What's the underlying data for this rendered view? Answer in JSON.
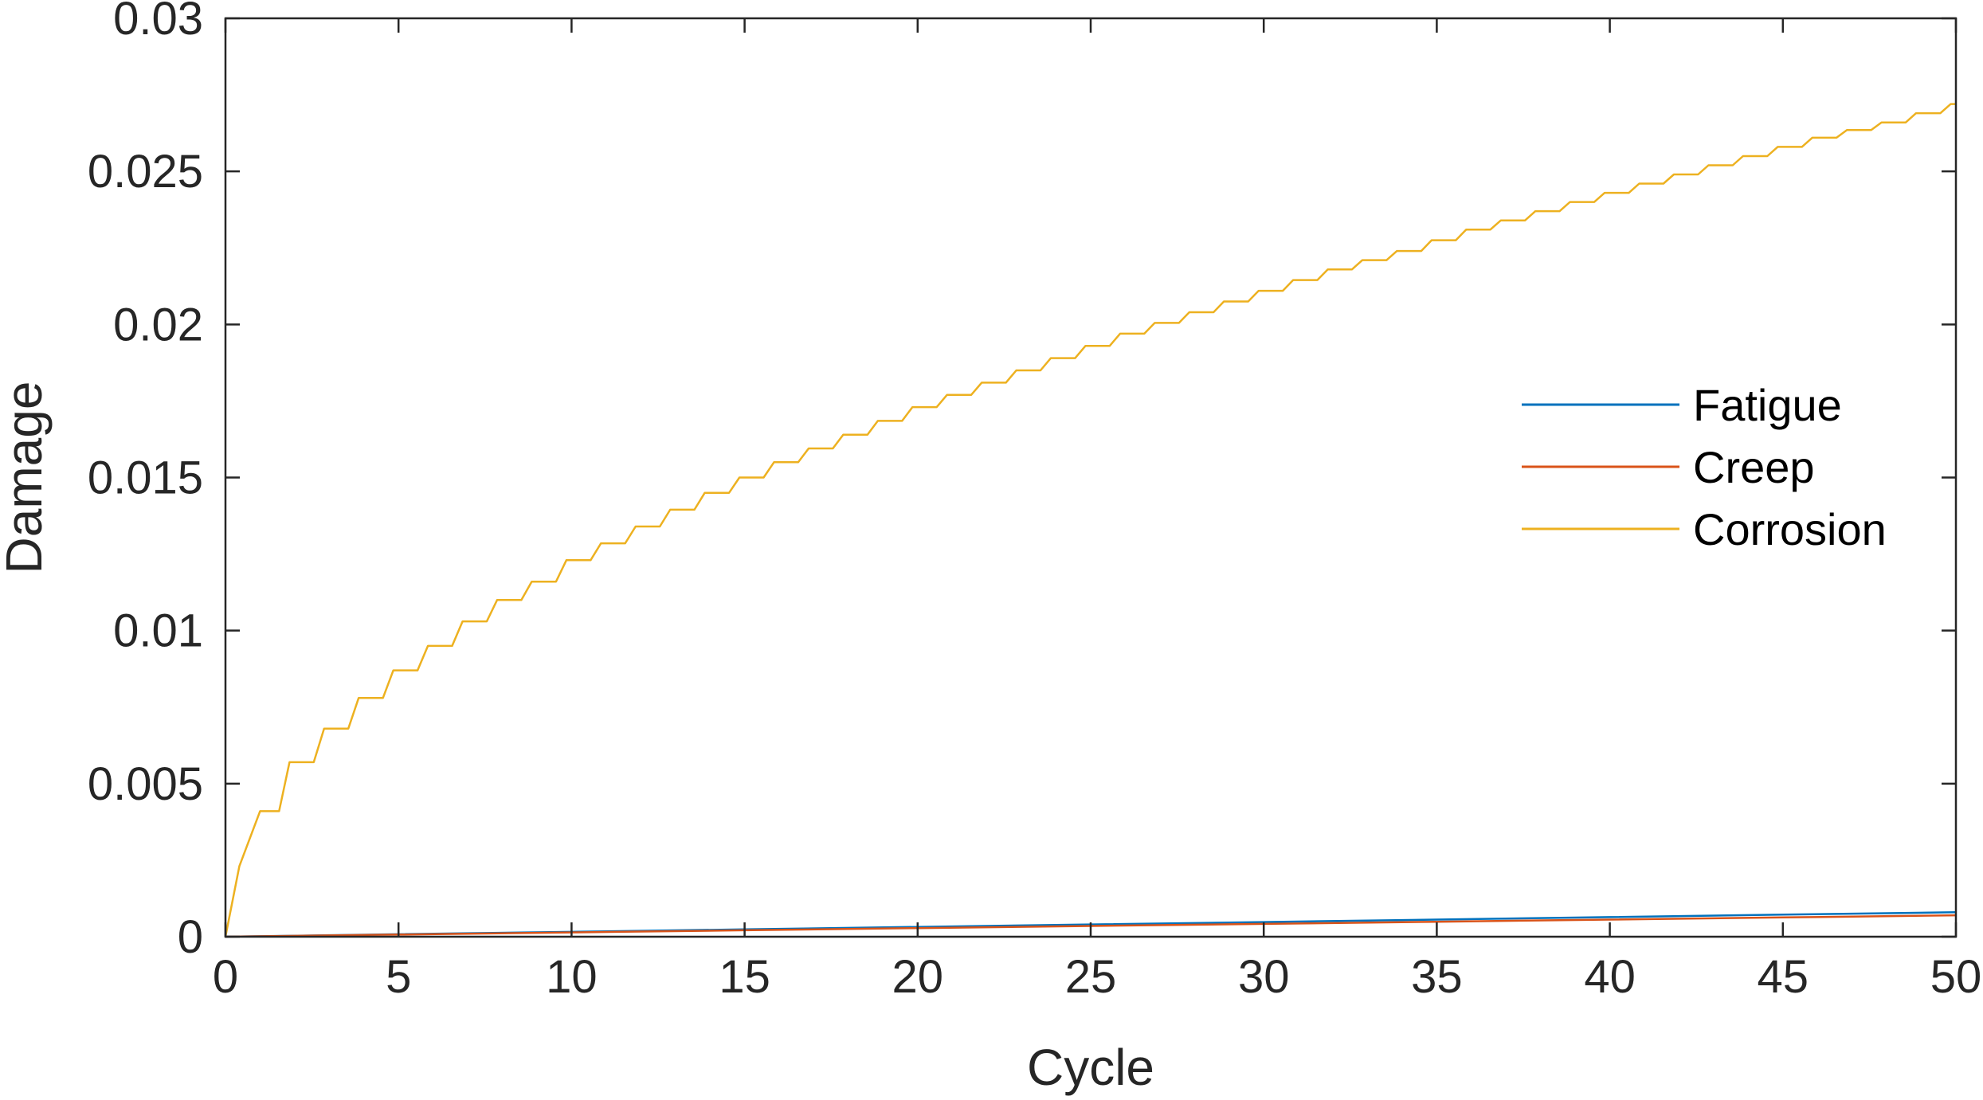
{
  "chart_data": {
    "type": "line",
    "title": "",
    "xlabel": "Cycle",
    "ylabel": "Damage",
    "xlim": [
      0,
      50
    ],
    "ylim": [
      0,
      0.03
    ],
    "grid": false,
    "legend_position": "center-right",
    "x_ticks": [
      0,
      5,
      10,
      15,
      20,
      25,
      30,
      35,
      40,
      45,
      50
    ],
    "x_tick_labels": [
      "0",
      "5",
      "10",
      "15",
      "20",
      "25",
      "30",
      "35",
      "40",
      "45",
      "50"
    ],
    "y_ticks": [
      0,
      0.005,
      0.01,
      0.015,
      0.02,
      0.025,
      0.03
    ],
    "y_tick_labels": [
      "0",
      "0.005",
      "0.01",
      "0.015",
      "0.02",
      "0.025",
      "0.03"
    ],
    "series": [
      {
        "name": "Fatigue",
        "color": "#0072BD",
        "x": [
          0,
          5,
          10,
          15,
          20,
          25,
          30,
          35,
          40,
          45,
          50
        ],
        "y": [
          0,
          8e-05,
          0.00016,
          0.00024,
          0.00032,
          0.0004,
          0.00048,
          0.00056,
          0.00064,
          0.00072,
          0.0008
        ]
      },
      {
        "name": "Creep",
        "color": "#D95319",
        "x": [
          0,
          5,
          10,
          15,
          20,
          25,
          30,
          35,
          40,
          45,
          50
        ],
        "y": [
          0,
          7e-05,
          0.00014,
          0.00021,
          0.00028,
          0.00035,
          0.00042,
          0.00049,
          0.00056,
          0.00063,
          0.0007
        ]
      },
      {
        "name": "Corrosion",
        "color": "#EDB120",
        "x": [
          0,
          0.4,
          1,
          2,
          3,
          4,
          5,
          6,
          7,
          8,
          9,
          10,
          12,
          14,
          16,
          18,
          20,
          22,
          24,
          26,
          28,
          30,
          32,
          34,
          36,
          38,
          40,
          42,
          44,
          46,
          48,
          50
        ],
        "y": [
          0,
          0.0023,
          0.0041,
          0.0057,
          0.0068,
          0.0078,
          0.0087,
          0.0095,
          0.0103,
          0.011,
          0.0116,
          0.0123,
          0.0134,
          0.0145,
          0.0155,
          0.0164,
          0.0173,
          0.0181,
          0.0189,
          0.0197,
          0.0204,
          0.0211,
          0.0218,
          0.0224,
          0.0231,
          0.0237,
          0.0243,
          0.0249,
          0.0255,
          0.0261,
          0.0266,
          0.0272
        ]
      }
    ]
  }
}
